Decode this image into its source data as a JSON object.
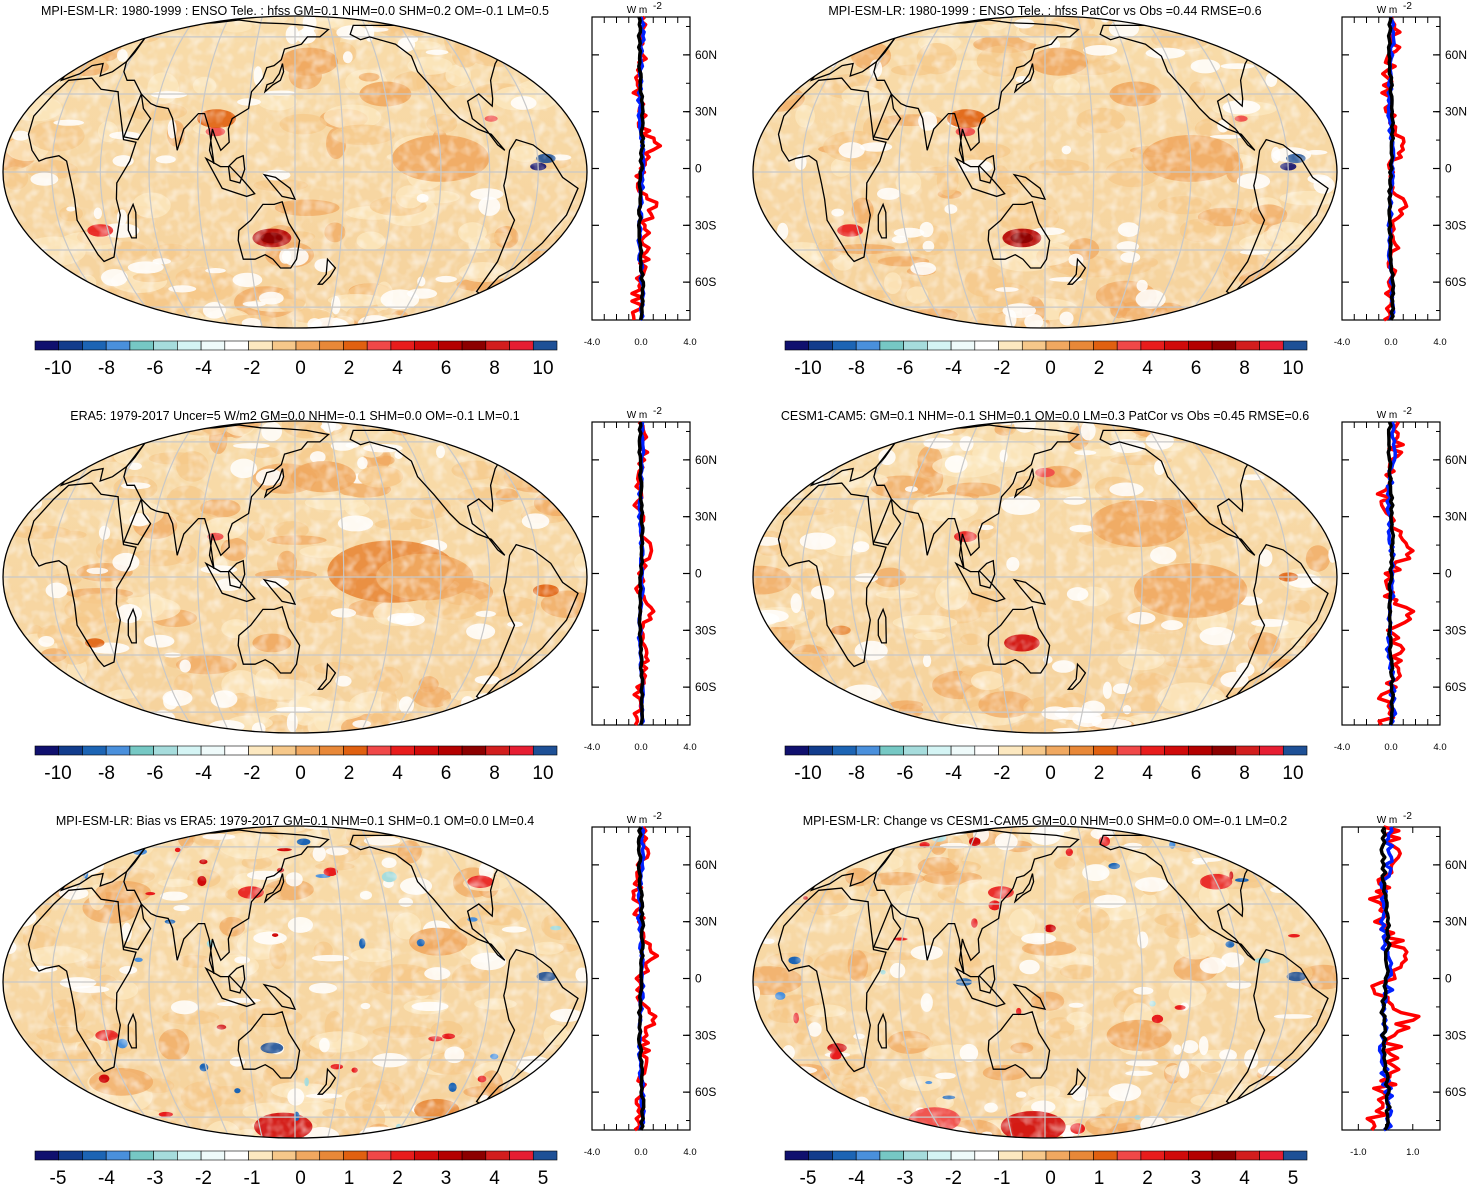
{
  "unit_label": "W m",
  "unit_exponent": "-2",
  "lat_ticks": [
    "60N",
    "30N",
    "0",
    "30S",
    "60S"
  ],
  "lat_values": [
    60,
    30,
    0,
    -30,
    -60
  ],
  "colors": {
    "palette": [
      "#10106e",
      "#123c8c",
      "#1c64b4",
      "#4a90dc",
      "#76c8c4",
      "#a6dcdc",
      "#d4f4f4",
      "#eefafa",
      "#ffffff",
      "#fce8c0",
      "#f6c88a",
      "#f0a860",
      "#e88838",
      "#e06010",
      "#f04848",
      "#e81c1c",
      "#d00a0a",
      "#b40000",
      "#8c0000",
      "#d21e1e",
      "#e61e32",
      "#1e5096"
    ],
    "land_outline": "#000000",
    "graticule": "#c8c8c8",
    "line_red": "#ff0000",
    "line_blue": "#0020ff",
    "line_black": "#000000"
  },
  "panels": [
    {
      "id": "mpi-enso",
      "title": "MPI-ESM-LR: 1980-1999 : ENSO Tele. : hfss GM=0.1 NHM=0.0 SHM=0.2 OM=-0.1 LM=0.5",
      "colorbar_ticks": [
        "-10",
        "-8",
        "-6",
        "-4",
        "-2",
        "0",
        "2",
        "4",
        "6",
        "8",
        "10"
      ],
      "zonal_xticks": [
        "-4.0",
        "0.0",
        "4.0"
      ],
      "zonal_xrange": [
        -4,
        4
      ],
      "zonal_amp": [
        1.0,
        0.5,
        0.4
      ]
    },
    {
      "id": "mpi-enso-patcor",
      "title": "MPI-ESM-LR: 1980-1999 : ENSO Tele. : hfss PatCor vs Obs =0.44 RMSE=0.6",
      "colorbar_ticks": [
        "-10",
        "-8",
        "-6",
        "-4",
        "-2",
        "0",
        "2",
        "4",
        "6",
        "8",
        "10"
      ],
      "zonal_xticks": [
        "-4.0",
        "0.0",
        "4.0"
      ],
      "zonal_xrange": [
        -4,
        4
      ],
      "zonal_amp": [
        1.0,
        0.5,
        0.4
      ]
    },
    {
      "id": "era5",
      "title": "ERA5: 1979-2017 Uncer=5 W/m2 GM=0.0 NHM=-0.1 SHM=0.0 OM=-0.1 LM=0.1",
      "colorbar_ticks": [
        "-10",
        "-8",
        "-6",
        "-4",
        "-2",
        "0",
        "2",
        "4",
        "6",
        "8",
        "10"
      ],
      "zonal_xticks": [
        "-4.0",
        "0.0",
        "4.0"
      ],
      "zonal_xrange": [
        -4,
        4
      ],
      "zonal_amp": [
        0.8,
        0.4,
        0.3
      ]
    },
    {
      "id": "cesm1",
      "title": "CESM1-CAM5: GM=0.1 NHM=-0.1 SHM=0.1 OM=0.0 LM=0.3 PatCor vs Obs =0.45 RMSE=0.6",
      "colorbar_ticks": [
        "-10",
        "-8",
        "-6",
        "-4",
        "-2",
        "0",
        "2",
        "4",
        "6",
        "8",
        "10"
      ],
      "zonal_xticks": [
        "-4.0",
        "0.0",
        "4.0"
      ],
      "zonal_xrange": [
        -4,
        4
      ],
      "zonal_amp": [
        1.4,
        0.7,
        0.4
      ]
    },
    {
      "id": "mpi-bias",
      "title": "MPI-ESM-LR: Bias vs ERA5: 1979-2017 GM=0.1 NHM=0.1 SHM=0.1 OM=0.0 LM=0.4",
      "colorbar_ticks": [
        "-5",
        "-4",
        "-3",
        "-2",
        "-1",
        "0",
        "1",
        "2",
        "3",
        "4",
        "5"
      ],
      "zonal_xticks": [
        "-4.0",
        "0.0",
        "4.0"
      ],
      "zonal_xrange": [
        -4,
        4
      ],
      "zonal_amp": [
        0.9,
        0.5,
        0.4
      ]
    },
    {
      "id": "mpi-change",
      "title": "MPI-ESM-LR: Change vs CESM1-CAM5 GM=0.0 NHM=0.0 SHM=0.0 OM=-0.1 LM=0.2",
      "colorbar_ticks": [
        "-5",
        "-4",
        "-3",
        "-2",
        "-1",
        "0",
        "1",
        "2",
        "3",
        "4",
        "5"
      ],
      "zonal_xticks": [
        "-1.0",
        "1.0"
      ],
      "zonal_xrange": [
        -1.6,
        2.0
      ],
      "zonal_amp": [
        0.9,
        0.5,
        0.3
      ]
    }
  ]
}
